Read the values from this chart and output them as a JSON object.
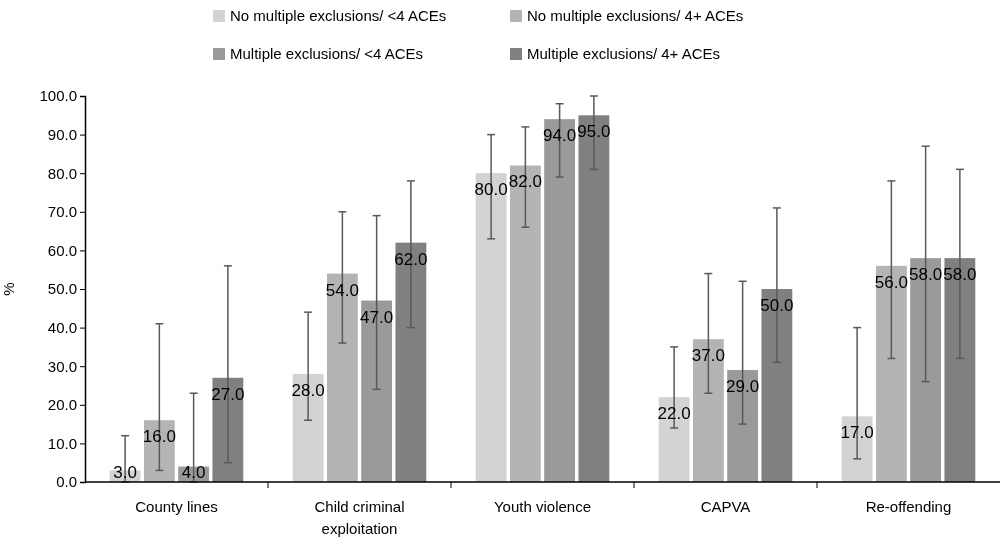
{
  "chart_data": {
    "type": "bar",
    "ylabel": "%",
    "categories": [
      "County lines",
      "Child criminal exploitation",
      "Youth violence",
      "CAPVA",
      "Re-offending"
    ],
    "series": [
      {
        "name": "No multiple exclusions/ <4 ACEs",
        "color": "#d3d3d3",
        "values": [
          3,
          28,
          80,
          22,
          17
        ],
        "errors": [
          [
            0,
            12
          ],
          [
            16,
            44
          ],
          [
            63,
            90
          ],
          [
            14,
            35
          ],
          [
            6,
            40
          ]
        ],
        "value_labels": [
          "3.0",
          "28.0",
          "80.0",
          "22.0",
          "17.0"
        ]
      },
      {
        "name": "No multiple exclusions/ 4+ ACEs",
        "color": "#b4b4b4",
        "values": [
          16,
          54,
          82,
          37,
          56
        ],
        "errors": [
          [
            3,
            41
          ],
          [
            36,
            70
          ],
          [
            66,
            92
          ],
          [
            23,
            54
          ],
          [
            32,
            78
          ]
        ],
        "value_labels": [
          "16.0",
          "54.0",
          "82.0",
          "37.0",
          "56.0"
        ]
      },
      {
        "name": "Multiple exclusions/ <4 ACEs",
        "color": "#9a9a9a",
        "values": [
          4,
          47,
          94,
          29,
          58
        ],
        "errors": [
          [
            0,
            23
          ],
          [
            24,
            69
          ],
          [
            79,
            98
          ],
          [
            15,
            52
          ],
          [
            26,
            87
          ]
        ],
        "value_labels": [
          "4.0",
          "47.0",
          "94.0",
          "29.0",
          "58.0"
        ]
      },
      {
        "name": "Multiple exclusions/ 4+ ACEs",
        "color": "#808080",
        "values": [
          27,
          62,
          95,
          50,
          58
        ],
        "errors": [
          [
            5,
            56
          ],
          [
            40,
            78
          ],
          [
            81,
            100
          ],
          [
            31,
            71
          ],
          [
            32,
            81
          ]
        ],
        "value_labels": [
          "27.0",
          "62.0",
          "95.0",
          "50.0",
          "58.0"
        ]
      }
    ],
    "ylim": [
      0,
      100
    ],
    "yticks": [
      {
        "value": 0,
        "label": "0.0"
      },
      {
        "value": 10,
        "label": "10.0"
      },
      {
        "value": 20,
        "label": "20.0"
      },
      {
        "value": 30,
        "label": "30.0"
      },
      {
        "value": 40,
        "label": "40.0"
      },
      {
        "value": 50,
        "label": "50.0"
      },
      {
        "value": 60,
        "label": "60.0"
      },
      {
        "value": 70,
        "label": "70.0"
      },
      {
        "value": 80,
        "label": "80.0"
      },
      {
        "value": 90,
        "label": "90.0"
      },
      {
        "value": 100,
        "label": "100.0"
      }
    ],
    "grid": false,
    "legend": "top"
  }
}
